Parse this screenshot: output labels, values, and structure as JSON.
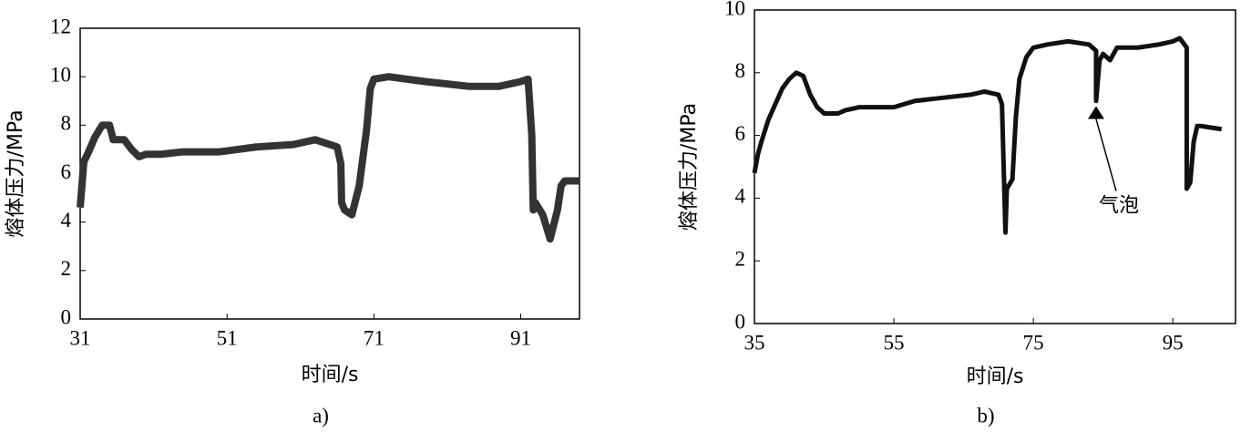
{
  "chart_data": [
    {
      "type": "line",
      "xlabel": "时间/s",
      "ylabel": "熔体压力/MPa",
      "caption": "a)",
      "x": [
        31,
        31.5,
        32,
        33,
        34,
        35,
        35.5,
        36,
        37,
        38,
        39,
        40,
        42,
        45,
        50,
        55,
        60,
        63,
        65,
        66,
        66.5,
        66.6,
        67,
        68,
        69,
        70,
        70.5,
        71,
        73,
        78,
        84,
        88,
        91,
        92,
        92.5,
        92.7,
        93,
        94,
        95,
        96,
        96.5,
        97,
        99
      ],
      "values": [
        4.6,
        6.5,
        6.8,
        7.5,
        8.0,
        8.0,
        7.4,
        7.4,
        7.4,
        7.0,
        6.7,
        6.8,
        6.8,
        6.9,
        6.9,
        7.1,
        7.2,
        7.4,
        7.2,
        7.1,
        6.4,
        4.8,
        4.5,
        4.3,
        5.5,
        7.8,
        9.5,
        9.9,
        10.0,
        9.8,
        9.6,
        9.6,
        9.8,
        9.9,
        7.6,
        4.5,
        4.8,
        4.3,
        3.3,
        4.5,
        5.5,
        5.7,
        5.7
      ],
      "color": "#333333",
      "xlim": [
        31,
        99
      ],
      "ylim": [
        0,
        12
      ],
      "xticks": [
        31,
        51,
        71,
        91
      ],
      "yticks": [
        0,
        2,
        4,
        6,
        8,
        10,
        12
      ]
    },
    {
      "type": "line",
      "xlabel": "时间/s",
      "ylabel": "熔体压力/MPa",
      "caption": "b)",
      "x": [
        35,
        35.5,
        36,
        37,
        38,
        39,
        40,
        41,
        42,
        43,
        44,
        45,
        47,
        48,
        50,
        53,
        55,
        58,
        62,
        66,
        68,
        70,
        70.5,
        71,
        71.2,
        72,
        72.5,
        73,
        74,
        75,
        77,
        80,
        83,
        84,
        84,
        84.5,
        85,
        86,
        87,
        90,
        93,
        95,
        96,
        97,
        97,
        97.5,
        98,
        98.5,
        99,
        102
      ],
      "values": [
        4.8,
        5.4,
        5.8,
        6.5,
        7.0,
        7.5,
        7.8,
        8.0,
        7.9,
        7.3,
        6.9,
        6.7,
        6.7,
        6.8,
        6.9,
        6.9,
        6.9,
        7.1,
        7.2,
        7.3,
        7.4,
        7.3,
        7.0,
        2.9,
        4.3,
        4.6,
        6.6,
        7.8,
        8.5,
        8.8,
        8.9,
        9.0,
        8.9,
        8.7,
        7.1,
        8.4,
        8.6,
        8.4,
        8.8,
        8.8,
        8.9,
        9.0,
        9.1,
        8.8,
        4.3,
        4.5,
        5.8,
        6.3,
        6.3,
        6.2
      ],
      "color": "#111111",
      "xlim": [
        35,
        104
      ],
      "ylim": [
        0,
        10
      ],
      "xticks": [
        35,
        55,
        75,
        95
      ],
      "yticks": [
        0,
        2,
        4,
        6,
        8,
        10
      ],
      "annotations": [
        {
          "text": "气泡",
          "x": 84,
          "y": 6.7
        }
      ]
    }
  ]
}
